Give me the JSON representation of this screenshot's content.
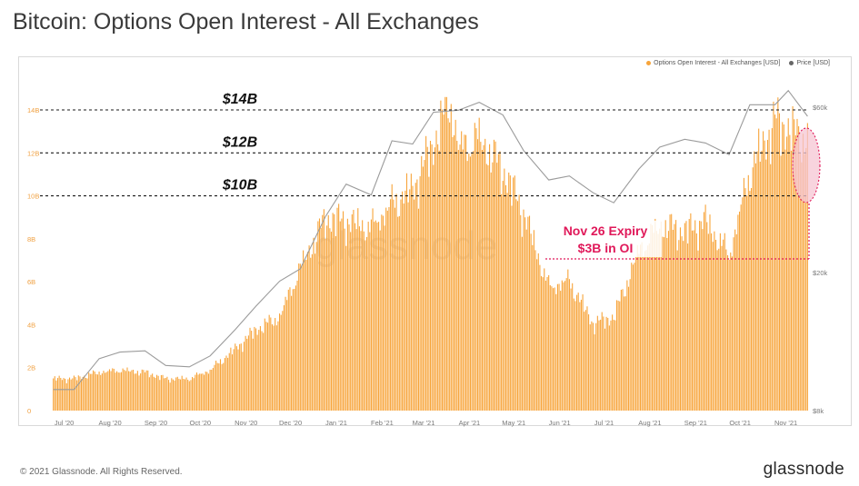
{
  "title": "Bitcoin: Options Open Interest - All Exchanges",
  "footer": "© 2021 Glassnode. All Rights Reserved.",
  "brand": "glassnode",
  "watermark": "glassnode",
  "colors": {
    "bars": "#f7a43a",
    "price": "#9b9b9b",
    "annotation": "#e0195a",
    "refline": "#1a1a1a",
    "ellipse_fill": "#f6c6d3"
  },
  "legend": [
    {
      "label": "Options Open Interest - All Exchanges [USD]",
      "color": "#f7a43a"
    },
    {
      "label": "Price [USD]",
      "color": "#666666"
    }
  ],
  "chart_data": {
    "type": "bar",
    "x_tick_labels": [
      "Jul '20",
      "Aug '20",
      "Sep '20",
      "Oct '20",
      "Nov '20",
      "Dec '20",
      "Jan '21",
      "Feb '21",
      "Mar '21",
      "Apr '21",
      "May '21",
      "Jun '21",
      "Jul '21",
      "Aug '21",
      "Sep '21",
      "Oct '21",
      "Nov '21"
    ],
    "left_axis": {
      "ticks": [
        "0",
        "2B",
        "4B",
        "6B",
        "8B",
        "10B",
        "12B",
        "14B"
      ],
      "ylim": [
        0,
        14000000000
      ]
    },
    "right_axis": {
      "scale": "log",
      "ticks": [
        "$8k",
        "$20k",
        "$60k"
      ]
    },
    "reference_lines": [
      {
        "label": "$14B",
        "value": 14000000000
      },
      {
        "label": "$12B",
        "value": 12000000000
      },
      {
        "label": "$10B",
        "value": 10000000000
      }
    ],
    "annotation": {
      "line1": "Nov 26 Expiry",
      "line2": "$3B in OI"
    },
    "series": [
      {
        "name": "Options Open Interest - All Exchanges [USD]",
        "type": "bar",
        "units": "USD billions",
        "x": [
          "2020-07-01",
          "2020-07-15",
          "2020-08-01",
          "2020-08-15",
          "2020-09-01",
          "2020-09-15",
          "2020-10-01",
          "2020-10-15",
          "2020-11-01",
          "2020-11-15",
          "2020-12-01",
          "2020-12-15",
          "2021-01-01",
          "2021-01-15",
          "2021-02-01",
          "2021-02-15",
          "2021-03-01",
          "2021-03-15",
          "2021-03-26",
          "2021-04-01",
          "2021-04-15",
          "2021-05-01",
          "2021-05-15",
          "2021-06-01",
          "2021-06-15",
          "2021-07-01",
          "2021-07-15",
          "2021-08-01",
          "2021-08-15",
          "2021-09-01",
          "2021-09-15",
          "2021-10-01",
          "2021-10-15",
          "2021-11-01",
          "2021-11-15",
          "2021-11-23"
        ],
        "values": [
          1.5,
          1.5,
          1.8,
          1.9,
          1.8,
          1.5,
          1.5,
          1.9,
          2.9,
          3.8,
          4.4,
          6.7,
          9.0,
          8.9,
          8.6,
          9.7,
          10.4,
          12.5,
          14.6,
          12.3,
          12.8,
          11.3,
          9.3,
          5.8,
          6.1,
          4.1,
          4.4,
          7.5,
          8.7,
          8.4,
          8.9,
          7.3,
          11.2,
          13.6,
          13.0,
          12.7
        ]
      },
      {
        "name": "Price [USD]",
        "type": "line",
        "units": "USD",
        "x": [
          "2020-07-01",
          "2020-07-15",
          "2020-08-01",
          "2020-08-15",
          "2020-09-01",
          "2020-09-15",
          "2020-10-01",
          "2020-10-15",
          "2020-11-01",
          "2020-11-15",
          "2020-12-01",
          "2020-12-15",
          "2021-01-01",
          "2021-01-15",
          "2021-02-01",
          "2021-02-15",
          "2021-03-01",
          "2021-03-15",
          "2021-04-01",
          "2021-04-15",
          "2021-05-01",
          "2021-05-15",
          "2021-06-01",
          "2021-06-15",
          "2021-07-01",
          "2021-07-15",
          "2021-08-01",
          "2021-08-15",
          "2021-09-01",
          "2021-09-15",
          "2021-10-01",
          "2021-10-15",
          "2021-11-01",
          "2021-11-10",
          "2021-11-23"
        ],
        "values": [
          9200,
          9200,
          11300,
          11800,
          11900,
          10800,
          10700,
          11500,
          13700,
          16000,
          18900,
          20500,
          29000,
          36000,
          33500,
          48000,
          47000,
          58000,
          58800,
          62000,
          57000,
          45000,
          37000,
          38000,
          34000,
          31800,
          39800,
          46000,
          48500,
          47300,
          43800,
          61000,
          61000,
          67000,
          56500
        ]
      }
    ]
  }
}
